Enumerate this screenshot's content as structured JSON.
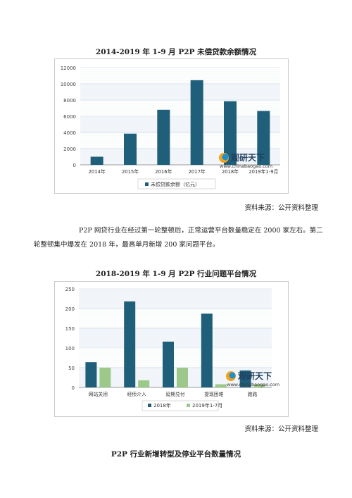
{
  "chart1": {
    "title": "2014-2019 年 1-9 月 P2P 未偿贷款余额情况",
    "source": "资料来源：公开资料整理"
  },
  "paragraph": "P2P 网贷行业在经过第一轮整顿后，正常运营平台数量稳定在 2000 家左右。第二轮整顿集中爆发在 2018 年，最高单月新增 200 家问题平台。",
  "chart2": {
    "title": "2018-2019 年 1-9 月 P2P 行业问题平台情况",
    "source": "资料来源：公开资料整理"
  },
  "section3_title": "P2P 行业新增转型及停业平台数量情况",
  "watermark": {
    "brand": "观研天下",
    "url": "www.chinabaogao.com"
  },
  "colors": {
    "primary": "#1f5f7a",
    "secondary": "#9cc98a",
    "grid": "#d9e3ec",
    "bg_stripe": "#f2f6fa"
  },
  "chart_data": [
    {
      "type": "bar",
      "categories": [
        "2014年",
        "2015年",
        "2016年",
        "2017年",
        "2018年",
        "2019年1-9月"
      ],
      "series": [
        {
          "name": "未偿贷款余额（亿元）",
          "values": [
            1000,
            3850,
            6800,
            10450,
            7850,
            6650
          ]
        }
      ],
      "ylim": [
        0,
        12000
      ],
      "yticks": [
        0,
        2000,
        4000,
        6000,
        8000,
        10000,
        12000
      ],
      "legend": "bottom",
      "grid": true
    },
    {
      "type": "bar",
      "categories": [
        "网站关闭",
        "经侦介入",
        "延期兑付",
        "提现困难",
        "跑路"
      ],
      "series": [
        {
          "name": "2018年",
          "values": [
            64,
            218,
            116,
            187,
            43
          ]
        },
        {
          "name": "2019年1-7月",
          "values": [
            50,
            18,
            50,
            8,
            8
          ]
        }
      ],
      "ylim": [
        0,
        250
      ],
      "yticks": [
        0,
        50,
        100,
        150,
        200,
        250
      ],
      "legend": "bottom",
      "grid": true
    }
  ]
}
